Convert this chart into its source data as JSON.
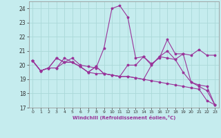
{
  "xlabel": "Windchill (Refroidissement éolien,°C)",
  "xlim": [
    -0.5,
    23.5
  ],
  "ylim": [
    17,
    24.5
  ],
  "yticks": [
    17,
    18,
    19,
    20,
    21,
    22,
    23,
    24
  ],
  "xticks": [
    0,
    1,
    2,
    3,
    4,
    5,
    6,
    7,
    8,
    9,
    10,
    11,
    12,
    13,
    14,
    15,
    16,
    17,
    18,
    19,
    20,
    21,
    22,
    23
  ],
  "bg_color": "#c5ecee",
  "grid_color": "#aad8d8",
  "line_color": "#993399",
  "lines": [
    {
      "x": [
        0,
        1,
        2,
        3,
        4,
        5,
        6,
        7,
        8,
        9,
        10,
        11,
        12,
        13,
        14,
        15,
        16,
        17,
        18,
        19,
        20,
        21,
        22,
        23
      ],
      "y": [
        20.3,
        19.6,
        19.8,
        20.5,
        20.2,
        20.2,
        19.9,
        19.5,
        19.4,
        19.4,
        19.3,
        19.2,
        19.2,
        19.1,
        19.0,
        18.9,
        18.8,
        18.7,
        18.6,
        18.5,
        18.4,
        18.3,
        17.5,
        17.2
      ]
    },
    {
      "x": [
        0,
        1,
        2,
        3,
        4,
        5,
        6,
        7,
        8,
        9,
        10,
        11,
        12,
        13,
        14,
        15,
        16,
        17,
        18,
        19,
        20,
        21,
        22,
        23
      ],
      "y": [
        20.3,
        19.6,
        19.8,
        20.5,
        20.2,
        20.5,
        20.0,
        19.9,
        19.8,
        21.2,
        24.0,
        24.2,
        23.4,
        20.5,
        20.6,
        20.1,
        20.5,
        21.8,
        20.8,
        20.8,
        20.7,
        21.1,
        20.7,
        20.7
      ]
    },
    {
      "x": [
        0,
        1,
        2,
        3,
        4,
        5,
        6,
        7,
        8,
        9,
        10,
        11,
        12,
        13,
        14,
        15,
        16,
        17,
        18,
        19,
        20,
        21,
        22,
        23
      ],
      "y": [
        20.3,
        19.6,
        19.8,
        19.8,
        20.2,
        20.2,
        19.9,
        19.5,
        19.9,
        19.4,
        19.3,
        19.2,
        19.2,
        19.1,
        19.0,
        20.0,
        20.6,
        21.0,
        20.4,
        20.8,
        18.8,
        18.6,
        18.5,
        17.2
      ]
    },
    {
      "x": [
        0,
        1,
        2,
        3,
        4,
        5,
        6,
        7,
        8,
        9,
        10,
        11,
        12,
        13,
        14,
        15,
        16,
        17,
        18,
        19,
        20,
        21,
        22,
        23
      ],
      "y": [
        20.3,
        19.6,
        19.8,
        19.8,
        20.5,
        20.2,
        19.9,
        19.5,
        19.9,
        19.4,
        19.3,
        19.2,
        20.0,
        20.0,
        20.6,
        20.0,
        20.6,
        20.5,
        20.4,
        19.5,
        18.8,
        18.5,
        18.2,
        17.2
      ]
    }
  ]
}
